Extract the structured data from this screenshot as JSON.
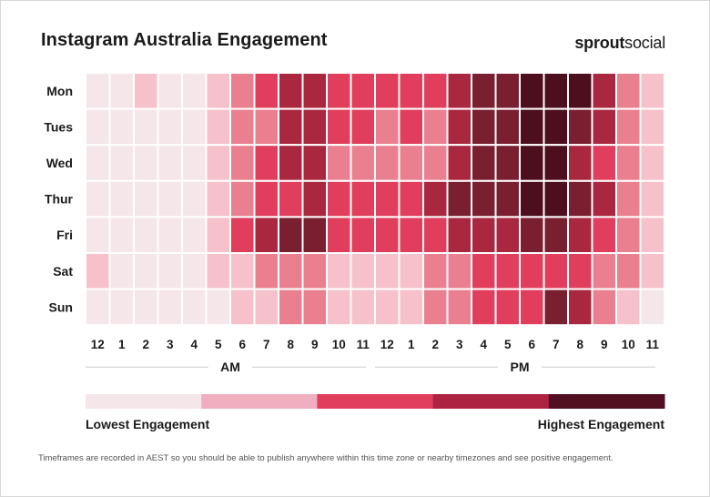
{
  "header": {
    "title": "Instagram Australia Engagement",
    "brand_bold": "sprout",
    "brand_regular": "social"
  },
  "footnote": "Timeframes are recorded in AEST so you should be able to publish anywhere within this time zone or nearby timezones and see positive engagement.",
  "colors": {
    "scale": [
      "#f5e6ea",
      "#f6c1cb",
      "#ea7f90",
      "#e03e5c",
      "#a9283f",
      "#7a1f30",
      "#4d0f1e"
    ],
    "legend": [
      "#f5e6ea",
      "#efafc0",
      "#e03e5c",
      "#ad2342",
      "#520f22"
    ],
    "grid_line": "#ffffff",
    "axis_line": "#cccccc"
  },
  "chart_data": {
    "type": "heatmap",
    "title": "Instagram Australia Engagement",
    "rows": [
      "Mon",
      "Tues",
      "Wed",
      "Thur",
      "Fri",
      "Sat",
      "Sun"
    ],
    "columns": [
      "12",
      "1",
      "2",
      "3",
      "4",
      "5",
      "6",
      "7",
      "8",
      "9",
      "10",
      "11",
      "12",
      "1",
      "2",
      "3",
      "4",
      "5",
      "6",
      "7",
      "8",
      "9",
      "10",
      "11"
    ],
    "period_labels": [
      "AM",
      "PM"
    ],
    "scale_min_label": "Lowest Engagement",
    "scale_max_label": "Highest Engagement",
    "scale_levels": 7,
    "values": [
      [
        0,
        0,
        1,
        0,
        0,
        1,
        2,
        3,
        4,
        4,
        3,
        3,
        3,
        3,
        3,
        4,
        5,
        5,
        6,
        6,
        6,
        4,
        2,
        1
      ],
      [
        0,
        0,
        0,
        0,
        0,
        1,
        2,
        2,
        4,
        4,
        3,
        3,
        2,
        3,
        2,
        4,
        5,
        5,
        6,
        6,
        5,
        4,
        2,
        1
      ],
      [
        0,
        0,
        0,
        0,
        0,
        1,
        2,
        3,
        4,
        4,
        2,
        2,
        2,
        2,
        2,
        4,
        5,
        5,
        6,
        6,
        4,
        3,
        2,
        1
      ],
      [
        0,
        0,
        0,
        0,
        0,
        1,
        2,
        3,
        3,
        4,
        3,
        3,
        3,
        3,
        4,
        5,
        5,
        5,
        6,
        6,
        5,
        4,
        2,
        1
      ],
      [
        0,
        0,
        0,
        0,
        0,
        1,
        3,
        4,
        5,
        5,
        3,
        3,
        3,
        3,
        3,
        4,
        4,
        4,
        5,
        5,
        4,
        3,
        2,
        1
      ],
      [
        1,
        0,
        0,
        0,
        0,
        1,
        1,
        2,
        2,
        2,
        1,
        1,
        1,
        1,
        2,
        2,
        3,
        3,
        3,
        3,
        3,
        2,
        2,
        1
      ],
      [
        0,
        0,
        0,
        0,
        0,
        0,
        1,
        1,
        2,
        2,
        1,
        1,
        1,
        1,
        2,
        2,
        3,
        3,
        3,
        5,
        4,
        2,
        1,
        0
      ]
    ]
  }
}
